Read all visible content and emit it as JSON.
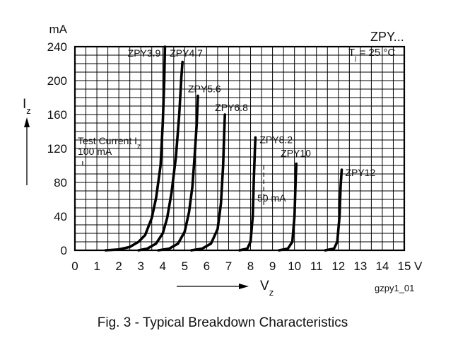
{
  "chart_data": {
    "type": "line",
    "y_unit": "mA",
    "x_unit": "V",
    "series_family": "ZPY...",
    "condition": {
      "prefix": "T",
      "sub": "j",
      "suffix": " = 25 °C"
    },
    "ylabel": {
      "main": "I",
      "sub": "z"
    },
    "xlabel": {
      "main": "V",
      "sub": "z"
    },
    "xlim": [
      0,
      15
    ],
    "ylim": [
      0,
      240
    ],
    "xticks": [
      0,
      1,
      2,
      3,
      4,
      5,
      6,
      7,
      8,
      9,
      10,
      11,
      12,
      13,
      14,
      15
    ],
    "yticks": [
      0,
      40,
      80,
      120,
      160,
      200,
      240
    ],
    "grid": true,
    "series": [
      {
        "name": "ZPY3.9",
        "points": [
          [
            1.4,
            0
          ],
          [
            2.0,
            1
          ],
          [
            2.5,
            4
          ],
          [
            2.9,
            10
          ],
          [
            3.2,
            18
          ],
          [
            3.5,
            38
          ],
          [
            3.7,
            62
          ],
          [
            3.9,
            100
          ],
          [
            4.0,
            150
          ],
          [
            4.07,
            200
          ],
          [
            4.1,
            240
          ]
        ]
      },
      {
        "name": "ZPY4.7",
        "points": [
          [
            2.9,
            0
          ],
          [
            3.3,
            2
          ],
          [
            3.7,
            8
          ],
          [
            4.0,
            20
          ],
          [
            4.2,
            38
          ],
          [
            4.4,
            68
          ],
          [
            4.6,
            110
          ],
          [
            4.75,
            160
          ],
          [
            4.85,
            205
          ],
          [
            4.9,
            222
          ]
        ]
      },
      {
        "name": "ZPY5.6",
        "points": [
          [
            3.8,
            0
          ],
          [
            4.3,
            2
          ],
          [
            4.7,
            8
          ],
          [
            5.0,
            22
          ],
          [
            5.2,
            45
          ],
          [
            5.35,
            75
          ],
          [
            5.45,
            110
          ],
          [
            5.55,
            150
          ],
          [
            5.6,
            182
          ]
        ]
      },
      {
        "name": "ZPY6.8",
        "points": [
          [
            5.3,
            0
          ],
          [
            5.8,
            2
          ],
          [
            6.2,
            8
          ],
          [
            6.5,
            25
          ],
          [
            6.65,
            55
          ],
          [
            6.75,
            100
          ],
          [
            6.8,
            140
          ],
          [
            6.83,
            160
          ]
        ]
      },
      {
        "name": "ZPY8.2",
        "points": [
          [
            7.5,
            0
          ],
          [
            7.85,
            2
          ],
          [
            8.0,
            10
          ],
          [
            8.1,
            40
          ],
          [
            8.15,
            85
          ],
          [
            8.2,
            120
          ],
          [
            8.22,
            133
          ]
        ]
      },
      {
        "name": "ZPY10",
        "points": [
          [
            9.3,
            0
          ],
          [
            9.7,
            2
          ],
          [
            9.9,
            10
          ],
          [
            10.0,
            40
          ],
          [
            10.05,
            80
          ],
          [
            10.08,
            102
          ]
        ]
      },
      {
        "name": "ZPY12",
        "points": [
          [
            11.4,
            0
          ],
          [
            11.8,
            2
          ],
          [
            11.95,
            10
          ],
          [
            12.05,
            40
          ],
          [
            12.1,
            75
          ],
          [
            12.15,
            95
          ]
        ]
      }
    ],
    "reference_lines": {
      "test_current_label": {
        "main": "Test Current I",
        "sub": "z"
      },
      "test_current_value_text": "100 mA",
      "test_current_value": 100,
      "test_current_x_end": 10.1,
      "second_current_label": "50 mA",
      "second_current_value": 50,
      "second_current_x_start": 8.2,
      "bracket_x": 8.6
    }
  },
  "figure": {
    "id": "gzpy1_01",
    "caption": "Fig. 3 - Typical Breakdown Characteristics"
  }
}
